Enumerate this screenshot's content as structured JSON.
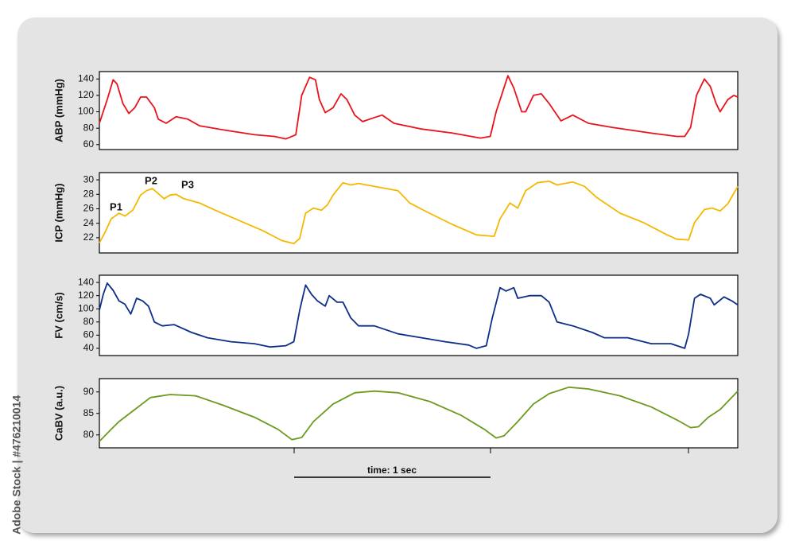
{
  "side_text": "Adobe Stock | #476210014",
  "chart_data": [
    {
      "type": "line",
      "ylabel": "ABP (mmHg)",
      "ylim": [
        54,
        149
      ],
      "yticks": [
        60,
        80,
        100,
        120,
        140
      ],
      "xlim": [
        0,
        3.25
      ],
      "x": [
        0,
        0.04,
        0.07,
        0.09,
        0.12,
        0.15,
        0.18,
        0.21,
        0.24,
        0.28,
        0.3,
        0.34,
        0.39,
        0.45,
        0.51,
        0.63,
        0.79,
        0.89,
        0.95,
        1.0,
        1.03,
        1.07,
        1.1,
        1.12,
        1.15,
        1.19,
        1.23,
        1.26,
        1.3,
        1.34,
        1.4,
        1.44,
        1.5,
        1.64,
        1.8,
        1.94,
        1.99,
        2.02,
        2.08,
        2.11,
        2.15,
        2.17,
        2.21,
        2.25,
        2.29,
        2.35,
        2.41,
        2.49,
        2.61,
        2.81,
        2.94,
        2.98,
        3.01,
        3.04,
        3.08,
        3.11,
        3.14,
        3.16,
        3.2,
        3.23,
        3.25
      ],
      "series": [
        {
          "name": "ABP",
          "color": "#e8141b",
          "values": [
            86,
            115,
            139,
            134,
            110,
            98,
            105,
            118,
            118,
            105,
            91,
            86,
            94,
            91,
            83,
            78,
            72,
            70,
            67,
            72,
            120,
            142,
            139,
            115,
            99,
            105,
            122,
            115,
            96,
            88,
            93,
            96,
            86,
            79,
            74,
            68,
            70,
            100,
            144,
            129,
            100,
            100,
            120,
            122,
            110,
            89,
            96,
            86,
            81,
            74,
            70,
            70,
            81,
            120,
            140,
            131,
            110,
            100,
            115,
            120,
            118
          ]
        }
      ]
    },
    {
      "type": "line",
      "ylabel": "ICP (mmHg)",
      "ylim": [
        19.9,
        31
      ],
      "yticks": [
        22,
        24,
        26,
        28,
        30
      ],
      "xlim": [
        0,
        3.25
      ],
      "annotations": [
        "P1",
        "P2",
        "P3"
      ],
      "x": [
        0,
        0.03,
        0.06,
        0.1,
        0.13,
        0.17,
        0.21,
        0.24,
        0.27,
        0.3,
        0.33,
        0.36,
        0.39,
        0.43,
        0.51,
        0.59,
        0.71,
        0.83,
        0.93,
        0.99,
        1.02,
        1.05,
        1.09,
        1.13,
        1.16,
        1.19,
        1.24,
        1.28,
        1.32,
        1.36,
        1.44,
        1.52,
        1.58,
        1.68,
        1.8,
        1.92,
        2.01,
        2.04,
        2.09,
        2.13,
        2.17,
        2.23,
        2.29,
        2.33,
        2.41,
        2.47,
        2.53,
        2.65,
        2.77,
        2.89,
        2.94,
        3.0,
        3.03,
        3.08,
        3.12,
        3.16,
        3.2,
        3.25
      ],
      "series": [
        {
          "name": "ICP",
          "color": "#f5b800",
          "values": [
            21.3,
            22.8,
            24.6,
            25.4,
            25.0,
            25.8,
            27.9,
            28.5,
            28.8,
            28.1,
            27.4,
            27.9,
            28.0,
            27.4,
            26.8,
            25.8,
            24.4,
            23.0,
            21.6,
            21.2,
            21.9,
            25.4,
            26.1,
            25.8,
            26.5,
            27.9,
            29.6,
            29.3,
            29.5,
            29.3,
            28.9,
            28.5,
            26.8,
            25.4,
            23.8,
            22.4,
            22.2,
            24.6,
            26.8,
            26.1,
            28.5,
            29.6,
            29.8,
            29.3,
            29.7,
            29.1,
            27.6,
            25.4,
            24.1,
            22.4,
            21.8,
            21.7,
            24.1,
            25.9,
            26.1,
            25.7,
            26.7,
            29.1
          ]
        }
      ]
    },
    {
      "type": "line",
      "ylabel": "FV (cm/s)",
      "ylim": [
        29,
        151
      ],
      "yticks": [
        40,
        60,
        80,
        100,
        120,
        140
      ],
      "xlim": [
        0,
        3.25
      ],
      "x": [
        0,
        0.02,
        0.04,
        0.07,
        0.1,
        0.13,
        0.16,
        0.19,
        0.22,
        0.25,
        0.28,
        0.32,
        0.38,
        0.47,
        0.55,
        0.67,
        0.79,
        0.87,
        0.95,
        0.99,
        1.02,
        1.05,
        1.08,
        1.11,
        1.15,
        1.17,
        1.21,
        1.24,
        1.28,
        1.32,
        1.4,
        1.52,
        1.64,
        1.76,
        1.88,
        1.92,
        1.97,
        2.0,
        2.04,
        2.07,
        2.11,
        2.13,
        2.19,
        2.25,
        2.29,
        2.33,
        2.41,
        2.51,
        2.57,
        2.69,
        2.81,
        2.91,
        2.98,
        3.0,
        3.03,
        3.06,
        3.11,
        3.13,
        3.18,
        3.22,
        3.25
      ],
      "series": [
        {
          "name": "FV",
          "color": "#0d2f8a",
          "values": [
            98,
            122,
            139,
            128,
            112,
            107,
            92,
            116,
            112,
            104,
            80,
            74,
            76,
            64,
            56,
            50,
            47,
            42,
            44,
            50,
            98,
            136,
            122,
            112,
            104,
            120,
            110,
            110,
            86,
            74,
            74,
            62,
            56,
            50,
            45,
            40,
            44,
            86,
            132,
            127,
            132,
            116,
            120,
            120,
            110,
            80,
            74,
            64,
            56,
            56,
            47,
            47,
            40,
            62,
            116,
            122,
            116,
            106,
            118,
            112,
            106
          ]
        }
      ]
    },
    {
      "type": "line",
      "ylabel": "CaBV (a.u.)",
      "ylim": [
        77,
        93.1
      ],
      "yticks": [
        80,
        85,
        90
      ],
      "xlim": [
        0,
        3.25
      ],
      "xlabel": "time: 1 sec",
      "x": [
        0,
        0.06,
        0.1,
        0.18,
        0.26,
        0.36,
        0.49,
        0.63,
        0.79,
        0.91,
        0.98,
        1.03,
        1.09,
        1.19,
        1.3,
        1.4,
        1.52,
        1.68,
        1.84,
        1.96,
        2.02,
        2.06,
        2.13,
        2.21,
        2.29,
        2.39,
        2.49,
        2.65,
        2.81,
        2.94,
        3.01,
        3.05,
        3.1,
        3.16,
        3.25
      ],
      "series": [
        {
          "name": "CaBV",
          "color": "#6b9a1f",
          "values": [
            78.5,
            81.3,
            83.1,
            85.9,
            88.7,
            89.4,
            89.1,
            86.9,
            84.1,
            81.3,
            78.9,
            79.4,
            83.1,
            87.2,
            89.8,
            90.2,
            89.8,
            87.8,
            84.6,
            81.3,
            79.3,
            79.8,
            83.1,
            87.2,
            89.6,
            91.1,
            90.7,
            89.1,
            86.5,
            83.5,
            81.7,
            81.9,
            84.1,
            85.9,
            90.2
          ]
        }
      ]
    }
  ]
}
